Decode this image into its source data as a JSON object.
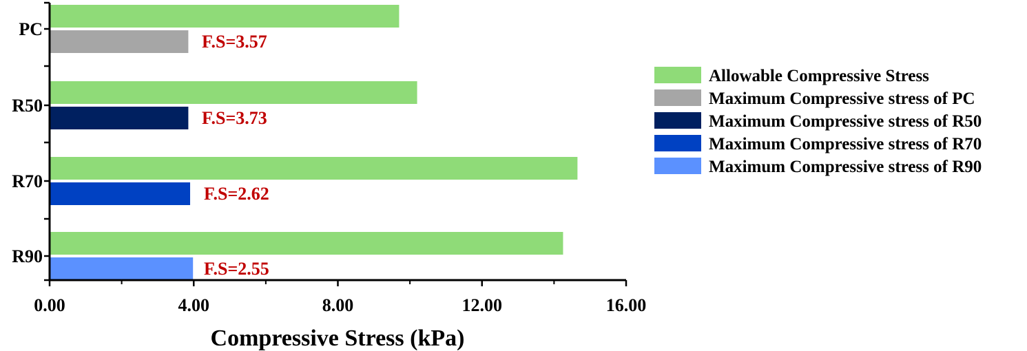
{
  "chart_data": {
    "type": "bar",
    "orientation": "horizontal",
    "categories": [
      "PC",
      "R50",
      "R70",
      "R90"
    ],
    "series": [
      {
        "name": "Allowable Compressive Stress",
        "color": "#8fdb78",
        "values": [
          9.7,
          10.2,
          14.65,
          14.25
        ]
      },
      {
        "name": "Maximum Compressive stress of PC",
        "color": "#a6a6a6",
        "values": [
          3.85,
          null,
          null,
          null
        ]
      },
      {
        "name": "Maximum Compressive stress of R50",
        "color": "#002060",
        "values": [
          null,
          3.85,
          null,
          null
        ]
      },
      {
        "name": "Maximum Compressive stress of R70",
        "color": "#0041c2",
        "values": [
          null,
          null,
          3.9,
          null
        ]
      },
      {
        "name": "Maximum Compressive stress of R90",
        "color": "#5b91ff",
        "values": [
          null,
          null,
          null,
          3.98
        ]
      }
    ],
    "annotations": [
      "F.S=3.57",
      "F.S=3.73",
      "F.S=2.62",
      "F.S=2.55"
    ],
    "annotation_color": "#c00000",
    "xlabel": "Compressive Stress (kPa)",
    "ylabel": "",
    "xlim": [
      0,
      16
    ],
    "x_ticks": [
      "0.00",
      "4.00",
      "8.00",
      "12.00",
      "16.00"
    ],
    "grid": false,
    "legend_position": "right"
  }
}
